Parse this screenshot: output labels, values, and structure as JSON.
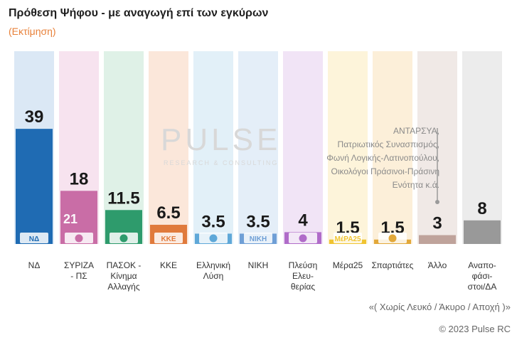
{
  "header": {
    "title": "Πρόθεση Ψήφου - με αναγωγή επί των εγκύρων",
    "subtitle": "(Εκτίμηση)"
  },
  "watermark": {
    "brand": "PULSE",
    "tagline": "RESEARCH & CONSULTING"
  },
  "annotation_lines": [
    "ΑΝΤΑΡΣΥΑ,",
    "Πατριωτικός Συνασπισμός,",
    "Φωνή Λογικής-Λατινοπούλου,",
    "Οικολόγοι Πράσινοι-Πράσινη",
    "Ενότητα κ.ά."
  ],
  "footnote": "«( Χωρίς Λευκό / Άκυρο / Αποχή )»",
  "copyright": "© 2023 Pulse RC",
  "chart_data": {
    "type": "bar",
    "title": "Πρόθεση Ψήφου - με αναγωγή επί των εγκύρων",
    "subtitle": "(Εκτίμηση)",
    "categories": [
      "ΝΔ",
      "ΣΥΡΙΖΑ - ΠΣ",
      "ΠΑΣΟΚ - Κίνημα Αλλαγής",
      "ΚΚΕ",
      "Ελληνική Λύση",
      "ΝΙΚΗ",
      "Πλεύση Ελευθερίας",
      "Μέρα25",
      "Σπαρτιάτες",
      "Άλλο",
      "Αναποφάσιστοι/ΔΑ"
    ],
    "category_lines": [
      [
        "ΝΔ"
      ],
      [
        "ΣΥΡΙΖΑ",
        "- ΠΣ"
      ],
      [
        "ΠΑΣΟΚ -",
        "Κίνημα",
        "Αλλαγής"
      ],
      [
        "ΚΚΕ"
      ],
      [
        "Ελληνική",
        "Λύση"
      ],
      [
        "ΝΙΚΗ"
      ],
      [
        "Πλεύση",
        "Ελευ-",
        "θερίας"
      ],
      [
        "Μέρα25"
      ],
      [
        "Σπαρτιάτες"
      ],
      [
        "Άλλο"
      ],
      [
        "Αναπο-",
        "φάσι-",
        "στοι/ΔΑ"
      ]
    ],
    "values": [
      39,
      18,
      11.5,
      6.5,
      3.5,
      3.5,
      4,
      1.5,
      1.5,
      3,
      8
    ],
    "value_labels": [
      "39",
      "18",
      "11.5",
      "6.5",
      "3.5",
      "3.5",
      "4",
      "1.5",
      "1.5",
      "3",
      "8"
    ],
    "secondary_label": {
      "category": "ΣΥΡΙΖΑ - ΠΣ",
      "value": "21"
    },
    "colors": [
      "#1f6bb3",
      "#c96da6",
      "#2e9b6c",
      "#e07a3c",
      "#5fa8d8",
      "#6f9fd6",
      "#b06cc9",
      "#f0c431",
      "#e2a83a",
      "#bfa39b",
      "#999999"
    ],
    "background_colors": [
      "#dbe8f5",
      "#f7e3ef",
      "#dff1e7",
      "#fbe7da",
      "#e2f0f8",
      "#e4eef8",
      "#f1e4f6",
      "#fdf4da",
      "#fcefd9",
      "#f0e9e6",
      "#ececec"
    ],
    "logo_names": [
      "nd-logo",
      "syriza-logo",
      "pasok-logo",
      "kke-logo",
      "elliniki-lysi-logo",
      "niki-logo",
      "plefsi-logo",
      "mera25-logo",
      "spartiates-logo",
      "",
      ""
    ],
    "logo_texts": [
      "ΝΔ",
      "",
      "",
      "ΚΚΕ",
      "",
      "ΝΙΚΗ",
      "",
      "ΜέΡΑ25",
      "",
      "",
      ""
    ],
    "ylim": [
      0,
      45
    ],
    "grid": false,
    "legend": "none"
  }
}
